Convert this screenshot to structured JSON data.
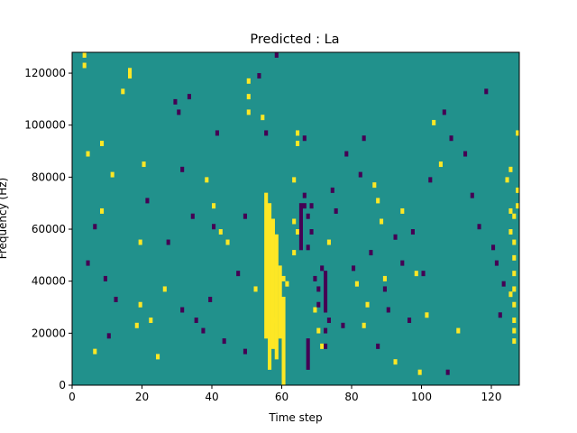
{
  "chart_data": {
    "type": "heatmap",
    "title": "Predicted : La",
    "xlabel": "Time step",
    "ylabel": "Frequency (Hz)",
    "xlim": [
      0,
      128
    ],
    "ylim": [
      0,
      128000
    ],
    "x_ticks": [
      0,
      20,
      40,
      60,
      80,
      100,
      120
    ],
    "x_tick_labels": [
      "0",
      "20",
      "40",
      "60",
      "80",
      "100",
      "120"
    ],
    "y_ticks": [
      0,
      20000,
      40000,
      60000,
      80000,
      100000,
      120000
    ],
    "y_tick_labels": [
      "0",
      "20000",
      "40000",
      "60000",
      "80000",
      "100000",
      "120000"
    ],
    "grid": false,
    "legend": "none",
    "colormap": {
      "low": "#440154",
      "mid": "#21918c",
      "high": "#fde725"
    },
    "background_level": "mid",
    "n_time_steps": 128,
    "n_frequency_bins": 64,
    "bin_height_hz": 2000,
    "cells_high": [
      [
        3,
        126000
      ],
      [
        3,
        122000
      ],
      [
        4,
        88000
      ],
      [
        6,
        12000
      ],
      [
        8,
        92000
      ],
      [
        8,
        66000
      ],
      [
        11,
        80000
      ],
      [
        14,
        112000
      ],
      [
        16,
        120000
      ],
      [
        16,
        118000
      ],
      [
        19,
        54000
      ],
      [
        20,
        84000
      ],
      [
        19,
        30000
      ],
      [
        18,
        22000
      ],
      [
        22,
        24000
      ],
      [
        24,
        10000
      ],
      [
        26,
        36000
      ],
      [
        38,
        78000
      ],
      [
        40,
        68000
      ],
      [
        42,
        58000
      ],
      [
        44,
        54000
      ],
      [
        50,
        116000
      ],
      [
        50,
        110000
      ],
      [
        50,
        104000
      ],
      [
        52,
        36000
      ],
      [
        54,
        102000
      ],
      [
        57,
        24000
      ],
      [
        63,
        78000
      ],
      [
        64,
        96000
      ],
      [
        64,
        92000
      ],
      [
        63,
        62000
      ],
      [
        64,
        58000
      ],
      [
        63,
        50000
      ],
      [
        60,
        40000
      ],
      [
        61,
        38000
      ],
      [
        69,
        28000
      ],
      [
        70,
        20000
      ],
      [
        71,
        14000
      ],
      [
        73,
        54000
      ],
      [
        81,
        38000
      ],
      [
        83,
        22000
      ],
      [
        84,
        30000
      ],
      [
        86,
        76000
      ],
      [
        87,
        70000
      ],
      [
        88,
        62000
      ],
      [
        89,
        40000
      ],
      [
        92,
        8000
      ],
      [
        94,
        66000
      ],
      [
        98,
        42000
      ],
      [
        99,
        4000
      ],
      [
        101,
        26000
      ],
      [
        103,
        100000
      ],
      [
        105,
        84000
      ],
      [
        110,
        20000
      ],
      [
        124,
        78000
      ],
      [
        125,
        82000
      ],
      [
        125,
        66000
      ],
      [
        125,
        58000
      ],
      [
        126,
        64000
      ],
      [
        126,
        54000
      ],
      [
        127,
        96000
      ],
      [
        127,
        74000
      ],
      [
        127,
        68000
      ],
      [
        126,
        48000
      ],
      [
        126,
        42000
      ],
      [
        126,
        36000
      ],
      [
        126,
        30000
      ],
      [
        126,
        24000
      ],
      [
        126,
        20000
      ],
      [
        126,
        16000
      ],
      [
        125,
        34000
      ]
    ],
    "cells_low": [
      [
        4,
        46000
      ],
      [
        6,
        60000
      ],
      [
        9,
        40000
      ],
      [
        10,
        18000
      ],
      [
        12,
        32000
      ],
      [
        21,
        70000
      ],
      [
        27,
        54000
      ],
      [
        29,
        108000
      ],
      [
        30,
        104000
      ],
      [
        31,
        82000
      ],
      [
        31,
        28000
      ],
      [
        33,
        110000
      ],
      [
        34,
        64000
      ],
      [
        35,
        24000
      ],
      [
        37,
        20000
      ],
      [
        39,
        32000
      ],
      [
        40,
        60000
      ],
      [
        41,
        96000
      ],
      [
        43,
        16000
      ],
      [
        47,
        42000
      ],
      [
        49,
        64000
      ],
      [
        49,
        12000
      ],
      [
        53,
        118000
      ],
      [
        55,
        96000
      ],
      [
        58,
        126000
      ],
      [
        66,
        94000
      ],
      [
        66,
        72000
      ],
      [
        66,
        68000
      ],
      [
        67,
        64000
      ],
      [
        67,
        52000
      ],
      [
        68,
        68000
      ],
      [
        68,
        58000
      ],
      [
        69,
        40000
      ],
      [
        70,
        36000
      ],
      [
        70,
        30000
      ],
      [
        71,
        44000
      ],
      [
        72,
        20000
      ],
      [
        72,
        14000
      ],
      [
        73,
        24000
      ],
      [
        74,
        74000
      ],
      [
        75,
        66000
      ],
      [
        77,
        22000
      ],
      [
        78,
        88000
      ],
      [
        80,
        44000
      ],
      [
        82,
        80000
      ],
      [
        83,
        94000
      ],
      [
        85,
        50000
      ],
      [
        87,
        14000
      ],
      [
        89,
        36000
      ],
      [
        90,
        28000
      ],
      [
        92,
        56000
      ],
      [
        94,
        46000
      ],
      [
        96,
        24000
      ],
      [
        97,
        58000
      ],
      [
        100,
        42000
      ],
      [
        102,
        78000
      ],
      [
        106,
        104000
      ],
      [
        107,
        4000
      ],
      [
        108,
        94000
      ],
      [
        112,
        88000
      ],
      [
        114,
        72000
      ],
      [
        116,
        60000
      ],
      [
        118,
        112000
      ],
      [
        120,
        52000
      ],
      [
        121,
        46000
      ],
      [
        122,
        26000
      ],
      [
        123,
        38000
      ]
    ],
    "column_runs_high": [
      [
        55,
        18000,
        74000
      ],
      [
        56,
        6000,
        70000
      ],
      [
        57,
        14000,
        64000
      ],
      [
        58,
        10000,
        58000
      ],
      [
        59,
        18000,
        46000
      ],
      [
        60,
        0,
        34000
      ]
    ],
    "column_runs_low": [
      [
        65,
        52000,
        70000
      ],
      [
        67,
        6000,
        18000
      ],
      [
        72,
        28000,
        44000
      ]
    ]
  }
}
